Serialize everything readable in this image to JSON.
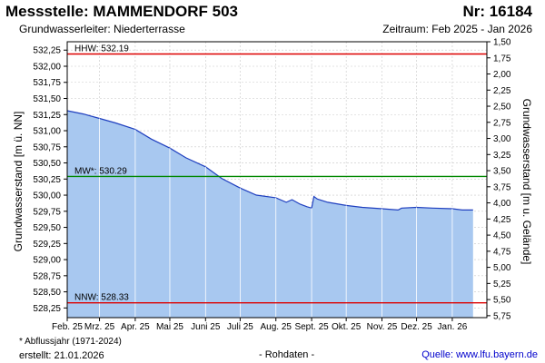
{
  "header": {
    "title": "Messstelle: MAMMENDORF 503",
    "number": "Nr: 16184",
    "aquifer": "Grundwasserleiter:  Niederterrasse",
    "period": "Zeitraum: Feb 2025 - Jan 2026"
  },
  "footer": {
    "footnote": "* Abflussjahr (1971-2024)",
    "created": "erstellt:  21.01.2026",
    "raw": "- Rohdaten -",
    "source": "Quelle: www.lfu.bayern.de"
  },
  "colors": {
    "area_fill": "#a8c8f0",
    "line": "#1f3fbf",
    "hhw": "#dd0000",
    "mw": "#008800",
    "nnw": "#dd0000",
    "grid": "#c8c8c8"
  },
  "chart_data": {
    "type": "area",
    "ylabel_left": "Grundwasserstand [m ü. NN]",
    "ylabel_right": "Grundwasserstand [m u. Gelände]",
    "ylim_left": [
      528.1,
      532.38
    ],
    "ylim_right": [
      5.78,
      1.5
    ],
    "xlim": [
      "2025-02-01",
      "2026-01-31"
    ],
    "grid": true,
    "left_ticks": [
      "532,25",
      "532,00",
      "531,75",
      "531,50",
      "531,25",
      "531,00",
      "530,75",
      "530,50",
      "530,25",
      "530,00",
      "529,75",
      "529,50",
      "529,25",
      "529,00",
      "528,75",
      "528,50",
      "528,25"
    ],
    "left_tick_values": [
      532.25,
      532.0,
      531.75,
      531.5,
      531.25,
      531.0,
      530.75,
      530.5,
      530.25,
      530.0,
      529.75,
      529.5,
      529.25,
      529.0,
      528.75,
      528.5,
      528.25
    ],
    "right_ticks": [
      "1,50",
      "1,75",
      "2,00",
      "2,25",
      "2,50",
      "2,75",
      "3,00",
      "3,25",
      "3,50",
      "3,75",
      "4,00",
      "4,25",
      "4,50",
      "4,75",
      "5,00",
      "5,25",
      "5,50",
      "5,75"
    ],
    "right_tick_values": [
      1.5,
      1.75,
      2.0,
      2.25,
      2.5,
      2.75,
      3.0,
      3.25,
      3.5,
      3.75,
      4.0,
      4.25,
      4.5,
      4.75,
      5.0,
      5.25,
      5.5,
      5.75
    ],
    "x_ticks": [
      "Feb. 25",
      "Mrz. 25",
      "Apr. 25",
      "Mai 25",
      "Juni 25",
      "Juli 25",
      "Aug. 25",
      "Sept. 25",
      "Okt. 25",
      "Nov. 25",
      "Dez. 25",
      "Jan. 26"
    ],
    "x_tick_dates": [
      "2025-02-01",
      "2025-03-01",
      "2025-04-01",
      "2025-05-01",
      "2025-06-01",
      "2025-07-01",
      "2025-08-01",
      "2025-09-01",
      "2025-10-01",
      "2025-11-01",
      "2025-12-01",
      "2026-01-01"
    ],
    "reference_lines": [
      {
        "label": "HHW: 532.19",
        "value": 532.19,
        "color": "#dd0000"
      },
      {
        "label": "MW*: 530.29",
        "value": 530.29,
        "color": "#008800"
      },
      {
        "label": "NNW: 528.33",
        "value": 528.33,
        "color": "#dd0000"
      }
    ],
    "series": [
      {
        "x": [
          "2025-02-01",
          "2025-02-15",
          "2025-03-01",
          "2025-03-15",
          "2025-04-01",
          "2025-04-15",
          "2025-05-01",
          "2025-05-15",
          "2025-06-01",
          "2025-06-15",
          "2025-07-01",
          "2025-07-15",
          "2025-08-01",
          "2025-08-10",
          "2025-08-15",
          "2025-08-22",
          "2025-08-28",
          "2025-09-01",
          "2025-09-03",
          "2025-09-06",
          "2025-09-15",
          "2025-10-01",
          "2025-10-15",
          "2025-11-01",
          "2025-11-15",
          "2025-11-18",
          "2025-12-01",
          "2025-12-15",
          "2026-01-01",
          "2026-01-10",
          "2026-01-19"
        ],
        "y": [
          531.31,
          531.26,
          531.19,
          531.12,
          531.02,
          530.87,
          530.73,
          530.58,
          530.44,
          530.26,
          530.11,
          530.0,
          529.96,
          529.89,
          529.93,
          529.86,
          529.82,
          529.8,
          529.98,
          529.94,
          529.89,
          529.84,
          529.81,
          529.79,
          529.77,
          529.8,
          529.81,
          529.8,
          529.79,
          529.77,
          529.77
        ]
      }
    ]
  }
}
